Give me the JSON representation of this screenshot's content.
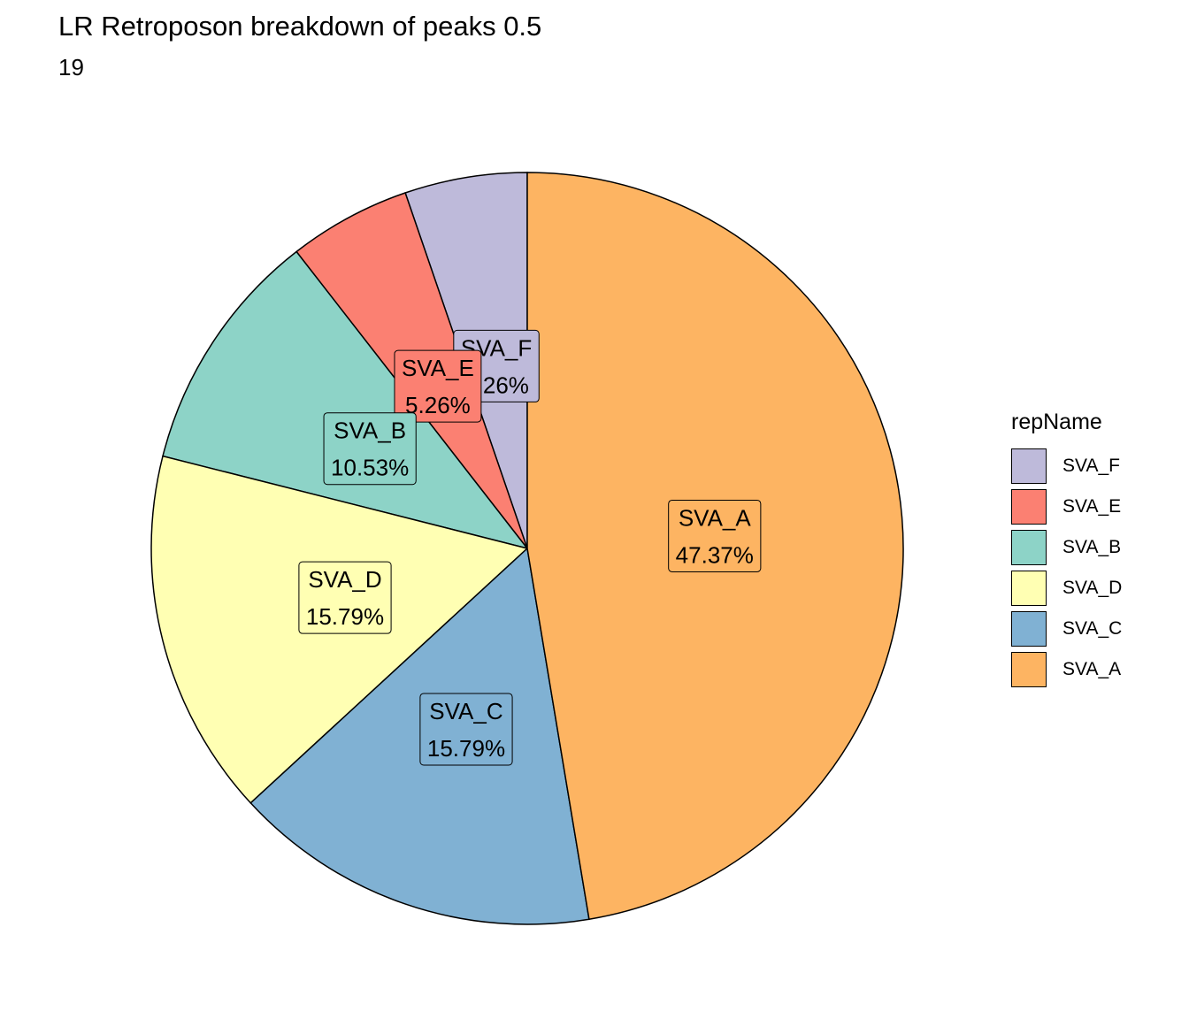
{
  "chart_data": {
    "type": "pie",
    "title": "LR Retroposon breakdown of peaks 0.5",
    "subtitle": "19",
    "legend_title": "repName",
    "legend_position": "right",
    "slices": [
      {
        "label": "SVA_F",
        "value": 5.26,
        "text": "5.26%",
        "color": "#bebada"
      },
      {
        "label": "SVA_E",
        "value": 5.26,
        "text": "5.26%",
        "color": "#fb8072"
      },
      {
        "label": "SVA_B",
        "value": 10.53,
        "text": "10.53%",
        "color": "#8dd3c7"
      },
      {
        "label": "SVA_D",
        "value": 15.79,
        "text": "15.79%",
        "color": "#ffffb3"
      },
      {
        "label": "SVA_C",
        "value": 15.79,
        "text": "15.79%",
        "color": "#80b1d3"
      },
      {
        "label": "SVA_A",
        "value": 47.37,
        "text": "47.37%",
        "color": "#fdb462"
      }
    ]
  }
}
